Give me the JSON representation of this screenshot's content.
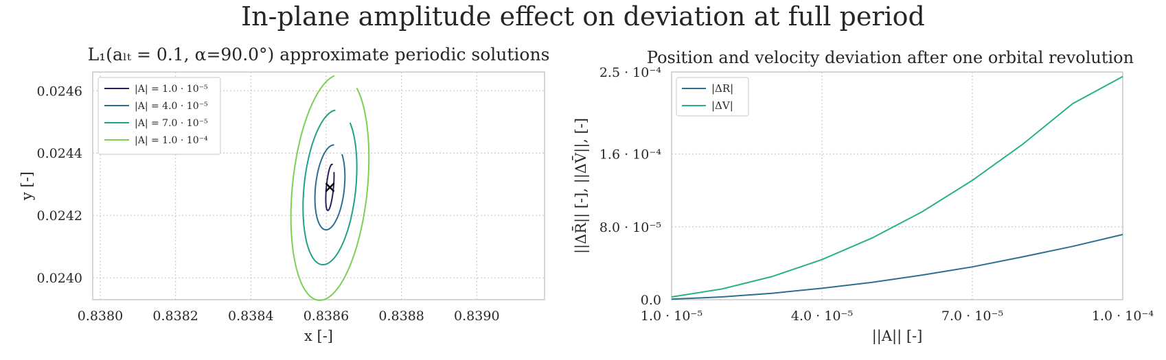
{
  "figure": {
    "title": "In-plane amplitude effect on deviation at full period"
  },
  "chart_data": [
    {
      "type": "line",
      "title": "L₁(aₗₜ = 0.1, α=90.0°) approximate periodic solutions",
      "xlabel": "x [-]",
      "ylabel": "y [-]",
      "xlim": [
        0.83798,
        0.83918
      ],
      "ylim": [
        0.02393,
        0.02466
      ],
      "xticks": [
        0.838,
        0.8382,
        0.8384,
        0.8386,
        0.8388,
        0.839
      ],
      "xtick_labels": [
        "0.8380",
        "0.8382",
        "0.8384",
        "0.8386",
        "0.8388",
        "0.8390"
      ],
      "yticks": [
        0.024,
        0.0242,
        0.0244,
        0.0246
      ],
      "ytick_labels": [
        "0.0240",
        "0.0242",
        "0.0244",
        "0.0246"
      ],
      "grid": true,
      "legend_position": "top-left",
      "equilibrium_point": {
        "x": 0.83861,
        "y": 0.02429,
        "marker": "x"
      },
      "series": [
        {
          "name": "|A| = 1.0 · 10⁻⁵",
          "color": "#2e1e5b",
          "amplitude_x": 9.5e-06,
          "amplitude_y": 7.4e-05,
          "start_angle_deg": 60
        },
        {
          "name": "|A| = 4.0 · 10⁻⁵",
          "color": "#2a6f8e",
          "amplitude_x": 3.85e-05,
          "amplitude_y": 0.000136,
          "start_angle_deg": 70
        },
        {
          "name": "|A| = 7.0 · 10⁻⁵",
          "color": "#1fa187",
          "amplitude_x": 6.9e-05,
          "amplitude_y": 0.000248,
          "start_angle_deg": 75
        },
        {
          "name": "|A| = 1.0 · 10⁻⁴",
          "color": "#7ad151",
          "amplitude_x": 0.0001,
          "amplitude_y": 0.000362,
          "start_angle_deg": 80
        }
      ]
    },
    {
      "type": "line",
      "title": "Position and velocity deviation after one orbital revolution",
      "xlabel": "||A|| [-]",
      "ylabel": "||ΔR̄|| [-], ||ΔV̄||, [-]",
      "xlim": [
        1e-05,
        0.0001
      ],
      "ylim": [
        0,
        0.00025
      ],
      "xticks": [
        1e-05,
        4e-05,
        7e-05,
        0.0001
      ],
      "xtick_labels": [
        "1.0 · 10⁻⁵",
        "4.0 · 10⁻⁵",
        "7.0 · 10⁻⁵",
        "1.0 · 10⁻⁴"
      ],
      "yticks": [
        0,
        8e-05,
        0.00016,
        0.00025
      ],
      "ytick_labels": [
        "0.0",
        "8.0 · 10⁻⁵",
        "1.6 · 10⁻⁴",
        "2.5 · 10⁻⁴"
      ],
      "grid": true,
      "legend_position": "top-left",
      "x": [
        1e-05,
        2e-05,
        3e-05,
        4e-05,
        5e-05,
        6e-05,
        7e-05,
        8e-05,
        9e-05,
        0.0001
      ],
      "series": [
        {
          "name": "|ΔR|",
          "color": "#2a6f8e",
          "values": [
            5e-07,
            3e-06,
            7e-06,
            1.25e-05,
            1.9e-05,
            2.7e-05,
            3.6e-05,
            4.7e-05,
            5.85e-05,
            7.15e-05
          ]
        },
        {
          "name": "|ΔV|",
          "color": "#27b37e",
          "values": [
            3e-06,
            1.17e-05,
            2.53e-05,
            4.4e-05,
            6.77e-05,
            9.66e-05,
            0.000131,
            0.0001705,
            0.0002152,
            0.000245
          ]
        }
      ]
    }
  ]
}
